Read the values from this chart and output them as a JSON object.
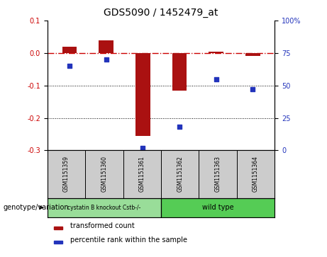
{
  "title": "GDS5090 / 1452479_at",
  "samples": [
    "GSM1151359",
    "GSM1151360",
    "GSM1151361",
    "GSM1151362",
    "GSM1151363",
    "GSM1151364"
  ],
  "bar_values": [
    0.02,
    0.04,
    -0.255,
    -0.115,
    0.005,
    -0.01
  ],
  "percentile_values": [
    65,
    70,
    2,
    18,
    55,
    47
  ],
  "ylim_left": [
    -0.3,
    0.1
  ],
  "ylim_right": [
    0,
    100
  ],
  "yticks_left": [
    -0.3,
    -0.2,
    -0.1,
    0.0,
    0.1
  ],
  "yticks_right": [
    0,
    25,
    50,
    75,
    100
  ],
  "bar_color": "#aa1111",
  "dot_color": "#2233bb",
  "hline_color": "#cc0000",
  "dotted_line_color": "#000000",
  "group1_label": "cystatin B knockout Cstb-/-",
  "group2_label": "wild type",
  "group1_color": "#99dd99",
  "group2_color": "#55cc55",
  "legend_bar_label": "transformed count",
  "legend_dot_label": "percentile rank within the sample",
  "genotype_label": "genotype/variation",
  "bg_color": "#ffffff",
  "plot_bg_color": "#ffffff",
  "tick_label_color_left": "#cc0000",
  "tick_label_color_right": "#2233bb",
  "sample_box_color": "#cccccc",
  "bar_width": 0.4
}
